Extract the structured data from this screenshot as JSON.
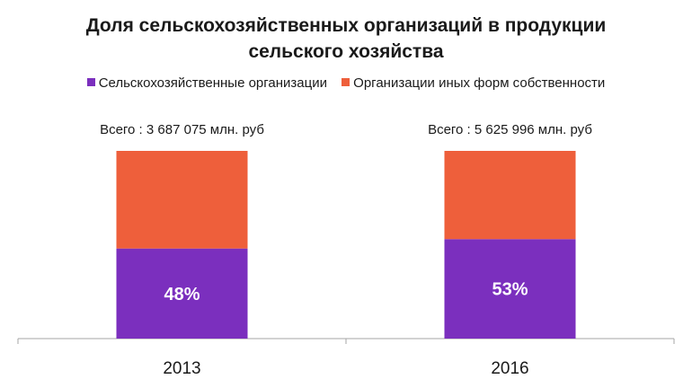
{
  "chart_data": {
    "type": "bar",
    "stacked": true,
    "percent_scale": true,
    "title_line1": "Доля сельскохозяйственных организаций в продукции",
    "title_line2": "сельского хозяйства",
    "categories": [
      "2013",
      "2016"
    ],
    "totals": [
      "Всего : 3 687 075 млн. руб",
      "Всего : 5 625 996 млн. руб"
    ],
    "series": [
      {
        "name": "Сельскохозяйственные организации",
        "values": [
          48,
          53
        ],
        "labels": [
          "48%",
          "53%"
        ],
        "color": "#7b2fbe"
      },
      {
        "name": "Организации иных форм собственности",
        "values": [
          52,
          47
        ],
        "color": "#ee5f3b"
      }
    ],
    "ylim": [
      0,
      100
    ],
    "grid": false,
    "legend_position": "top"
  }
}
